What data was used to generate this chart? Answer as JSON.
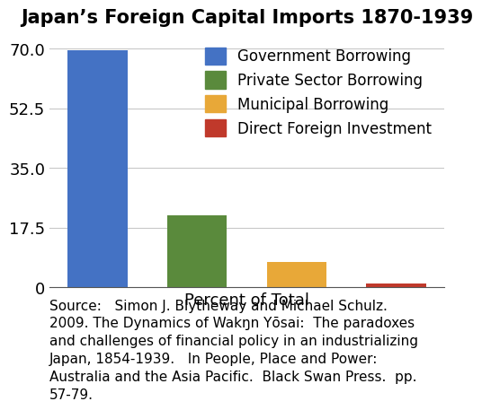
{
  "title": "Japan’s Foreign Capital Imports 1870-1939",
  "categories": [
    "Government Borrowing",
    "Private Sector Borrowing",
    "Municipal Borrowing",
    "Direct Foreign Investment"
  ],
  "values": [
    69.5,
    21.0,
    7.5,
    1.0
  ],
  "colors": [
    "#4472c4",
    "#5a8a3c",
    "#e8a838",
    "#c0392b"
  ],
  "xlabel": "Percent of Total",
  "yticks": [
    0,
    17.5,
    35.0,
    52.5,
    70.0
  ],
  "ylim": [
    0,
    74
  ],
  "source_text": "Source:   Simon J. Blytheway and Michael Schulz.\n2009. The Dynamics of Wakŋn Yōsai:  The paradoxes\nand challenges of financial policy in an industrializing\nJapan, 1854-1939.   In People, Place and Power:\nAustralia and the Asia Pacific.  Black Swan Press.  pp.\n57-79.",
  "background_color": "#ffffff",
  "title_fontsize": 15,
  "axis_label_fontsize": 13,
  "tick_fontsize": 13,
  "legend_fontsize": 12,
  "source_fontsize": 11
}
